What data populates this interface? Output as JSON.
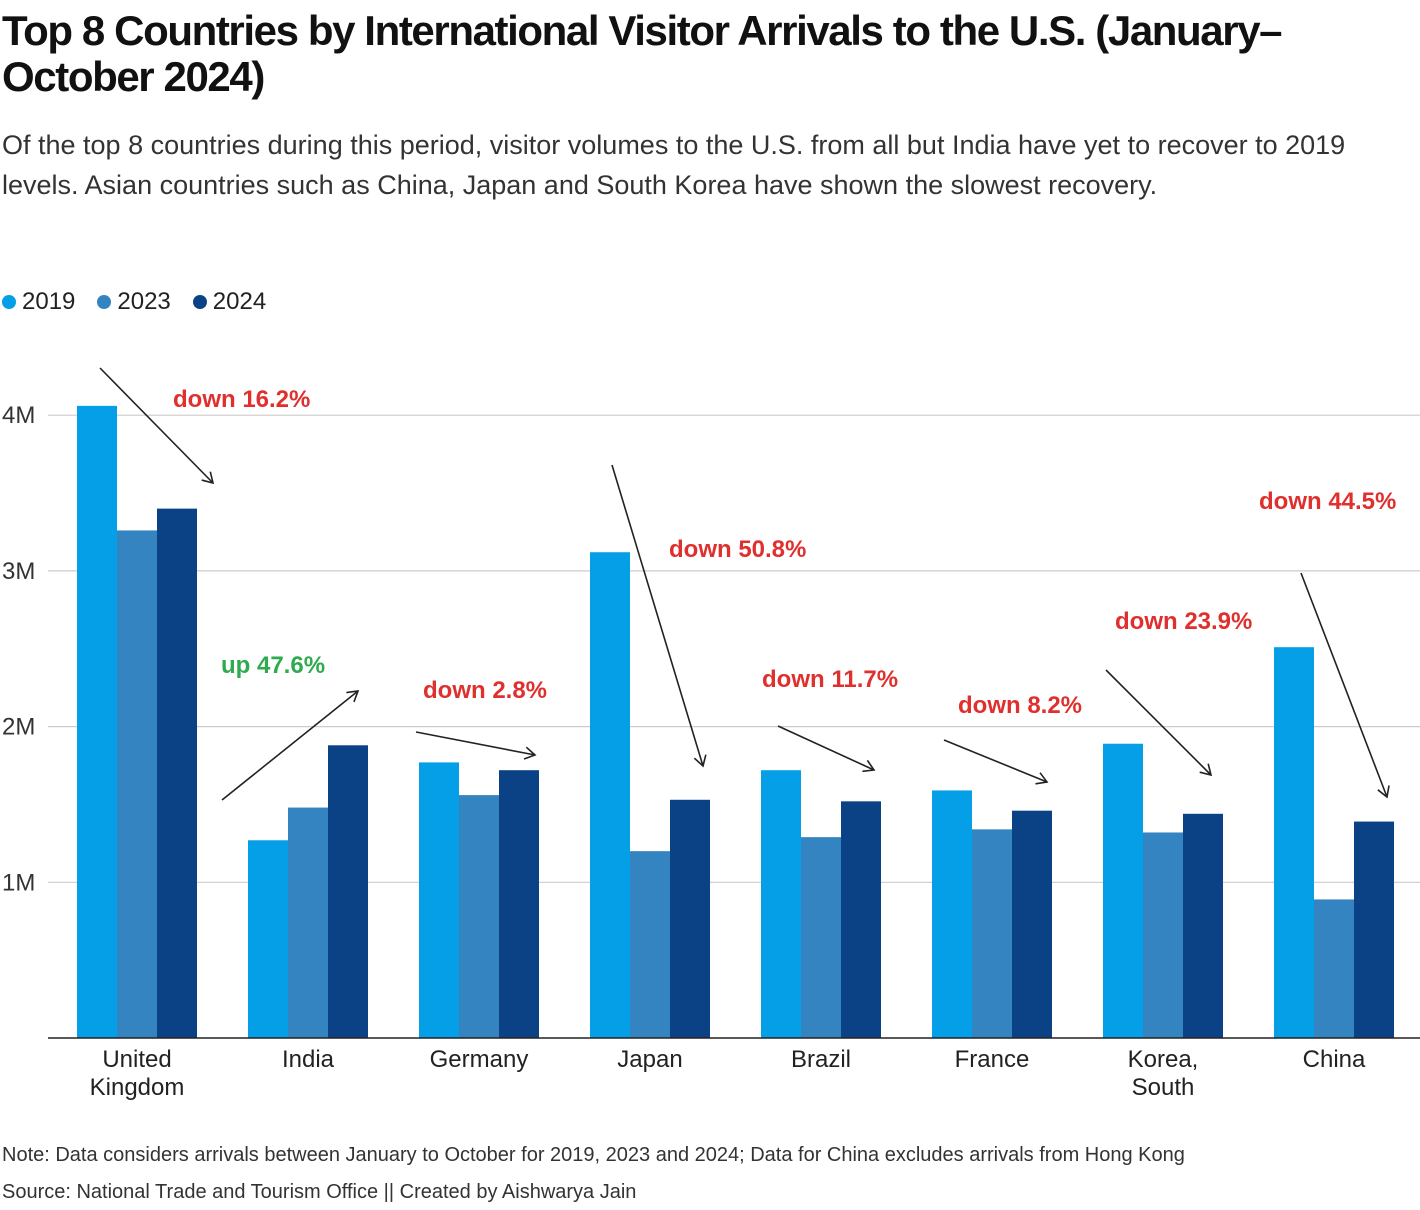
{
  "title": "Top 8 Countries by International Visitor Arrivals to the U.S. (January–October 2024)",
  "subtitle": "Of the top 8 countries during this period, visitor volumes to the U.S. from all but India have yet to recover to 2019 levels. Asian countries such as China, Japan and South Korea have shown the slowest recovery.",
  "note": "Note: Data considers arrivals between January to October for 2019, 2023 and 2024; Data for China excludes arrivals from Hong Kong",
  "source": "Source: National Trade and Tourism Office || Created by Aishwarya Jain",
  "colors": {
    "down": "#e0302e",
    "up": "#2eaa4f",
    "grid": "#cccccc",
    "axis": "#222222"
  },
  "chart_data": {
    "type": "bar",
    "title": "Top 8 Countries by International Visitor Arrivals to the U.S. (January–October 2024)",
    "xlabel": "",
    "ylabel": "",
    "ylim": [
      0,
      4.25
    ],
    "yticks": [
      {
        "value": 1,
        "label": "1M"
      },
      {
        "value": 2,
        "label": "2M"
      },
      {
        "value": 3,
        "label": "3M"
      },
      {
        "value": 4,
        "label": "4M"
      }
    ],
    "grid": true,
    "legend_position": "top-left",
    "categories": [
      [
        "United",
        "Kingdom"
      ],
      [
        "India"
      ],
      [
        "Germany"
      ],
      [
        "Japan"
      ],
      [
        "Brazil"
      ],
      [
        "France"
      ],
      [
        "Korea,",
        "South"
      ],
      [
        "China"
      ]
    ],
    "series": [
      {
        "name": "2019",
        "color": "#049fe6",
        "values": [
          4.06,
          1.27,
          1.77,
          3.12,
          1.72,
          1.59,
          1.89,
          2.51
        ]
      },
      {
        "name": "2023",
        "color": "#3384c0",
        "values": [
          3.26,
          1.48,
          1.56,
          1.2,
          1.29,
          1.34,
          1.32,
          0.89
        ]
      },
      {
        "name": "2024",
        "color": "#0b4285",
        "values": [
          3.4,
          1.88,
          1.72,
          1.53,
          1.52,
          1.46,
          1.44,
          1.39
        ]
      }
    ],
    "annotations": [
      {
        "category": 0,
        "text": "down 16.2%",
        "direction": "down"
      },
      {
        "category": 1,
        "text": "up 47.6%",
        "direction": "up"
      },
      {
        "category": 2,
        "text": "down 2.8%",
        "direction": "down"
      },
      {
        "category": 3,
        "text": "down 50.8%",
        "direction": "down"
      },
      {
        "category": 4,
        "text": "down 11.7%",
        "direction": "down"
      },
      {
        "category": 5,
        "text": "down 8.2%",
        "direction": "down"
      },
      {
        "category": 6,
        "text": "down 23.9%",
        "direction": "down"
      },
      {
        "category": 7,
        "text": "down 44.5%",
        "direction": "down"
      }
    ]
  }
}
